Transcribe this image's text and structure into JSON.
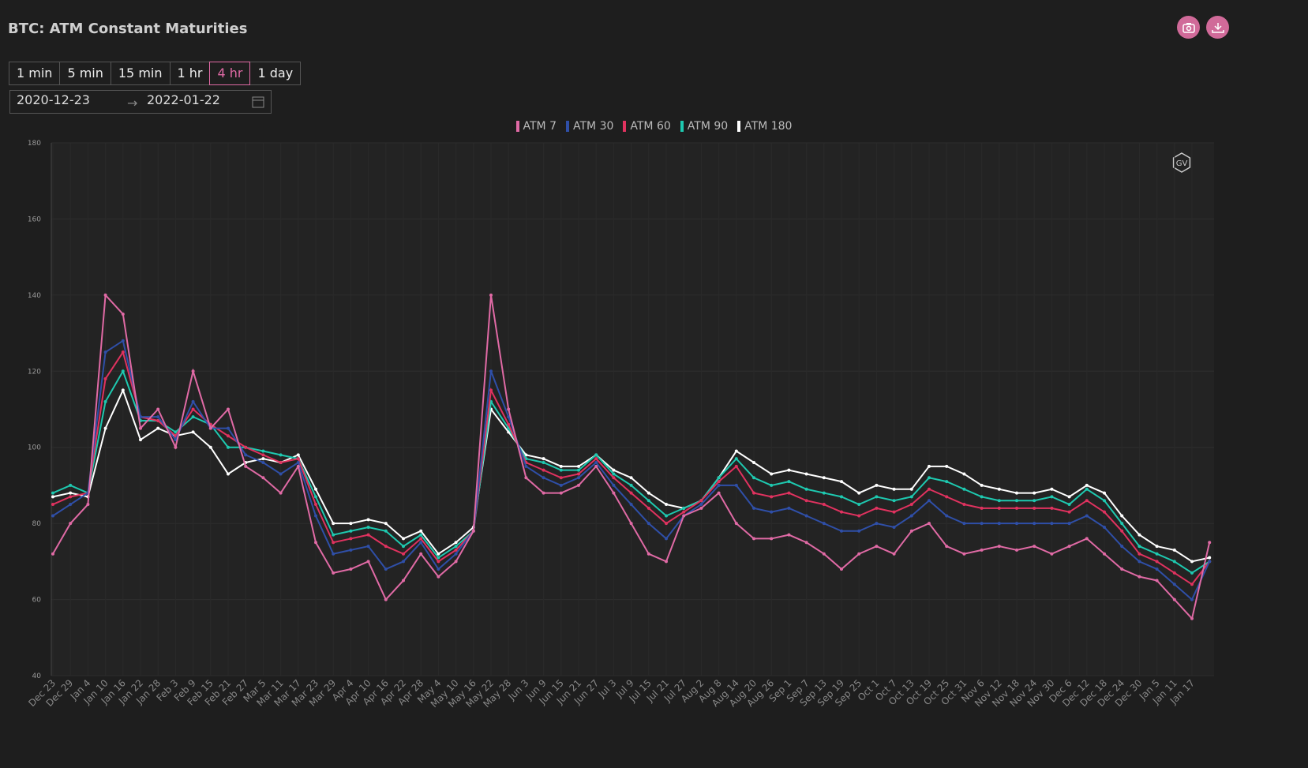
{
  "header": {
    "title": "BTC: ATM Constant Maturities",
    "intervals": [
      "1 min",
      "5 min",
      "15 min",
      "1 hr",
      "4 hr",
      "1 day"
    ],
    "active_interval": 4,
    "start_date": "2020-12-23",
    "end_date": "2022-01-22"
  },
  "chart_data": {
    "type": "line",
    "categories": [
      "Dec 23",
      "Dec 29",
      "Jan 4",
      "Jan 10",
      "Jan 16",
      "Jan 22",
      "Jan 28",
      "Feb 3",
      "Feb 9",
      "Feb 15",
      "Feb 21",
      "Feb 27",
      "Mar 5",
      "Mar 11",
      "Mar 17",
      "Mar 23",
      "Mar 29",
      "Apr 4",
      "Apr 10",
      "Apr 16",
      "Apr 22",
      "Apr 28",
      "May 4",
      "May 10",
      "May 16",
      "May 22",
      "May 28",
      "Jun 3",
      "Jun 9",
      "Jun 15",
      "Jun 21",
      "Jun 27",
      "Jul 3",
      "Jul 9",
      "Jul 15",
      "Jul 21",
      "Jul 27",
      "Aug 2",
      "Aug 8",
      "Aug 14",
      "Aug 20",
      "Aug 26",
      "Sep 1",
      "Sep 7",
      "Sep 13",
      "Sep 19",
      "Sep 25",
      "Oct 1",
      "Oct 7",
      "Oct 13",
      "Oct 19",
      "Oct 25",
      "Oct 31",
      "Nov 6",
      "Nov 12",
      "Nov 18",
      "Nov 24",
      "Nov 30",
      "Dec 6",
      "Dec 12",
      "Dec 18",
      "Dec 24",
      "Dec 30",
      "Jan 5",
      "Jan 11",
      "Jan 17",
      null
    ],
    "series": [
      {
        "name": "ATM 7",
        "color": "#e06aa5",
        "values": [
          72,
          80,
          85,
          140,
          135,
          105,
          110,
          100,
          120,
          105,
          110,
          95,
          92,
          88,
          95,
          75,
          67,
          68,
          70,
          60,
          65,
          72,
          66,
          70,
          78,
          140,
          110,
          92,
          88,
          88,
          90,
          95,
          88,
          80,
          72,
          70,
          82,
          84,
          88,
          80,
          76,
          76,
          77,
          75,
          72,
          68,
          72,
          74,
          72,
          78,
          80,
          74,
          72,
          73,
          74,
          73,
          74,
          72,
          74,
          76,
          72,
          68,
          66,
          65,
          60,
          55,
          75
        ]
      },
      {
        "name": "ATM 30",
        "color": "#2f4fa8",
        "values": [
          82,
          85,
          88,
          125,
          128,
          108,
          108,
          102,
          112,
          105,
          105,
          98,
          96,
          93,
          96,
          82,
          72,
          73,
          74,
          68,
          70,
          75,
          68,
          72,
          78,
          120,
          108,
          95,
          92,
          90,
          92,
          96,
          90,
          85,
          80,
          76,
          82,
          85,
          90,
          90,
          84,
          83,
          84,
          82,
          80,
          78,
          78,
          80,
          79,
          82,
          86,
          82,
          80,
          80,
          80,
          80,
          80,
          80,
          80,
          82,
          79,
          74,
          70,
          68,
          64,
          60,
          70
        ]
      },
      {
        "name": "ATM 60",
        "color": "#e0325f",
        "values": [
          85,
          87,
          88,
          118,
          125,
          108,
          107,
          103,
          110,
          106,
          103,
          100,
          98,
          96,
          97,
          85,
          75,
          76,
          77,
          74,
          72,
          76,
          70,
          73,
          78,
          115,
          106,
          96,
          94,
          92,
          93,
          97,
          92,
          88,
          84,
          80,
          83,
          86,
          91,
          95,
          88,
          87,
          88,
          86,
          85,
          83,
          82,
          84,
          83,
          85,
          89,
          87,
          85,
          84,
          84,
          84,
          84,
          84,
          83,
          86,
          83,
          78,
          72,
          70,
          67,
          64,
          70
        ]
      },
      {
        "name": "ATM 90",
        "color": "#1ec9b0",
        "values": [
          88,
          90,
          88,
          112,
          120,
          107,
          107,
          104,
          108,
          106,
          100,
          100,
          99,
          98,
          97,
          87,
          77,
          78,
          79,
          78,
          74,
          77,
          71,
          74,
          78,
          112,
          105,
          97,
          96,
          94,
          94,
          98,
          93,
          90,
          86,
          82,
          84,
          86,
          92,
          97,
          92,
          90,
          91,
          89,
          88,
          87,
          85,
          87,
          86,
          87,
          92,
          91,
          89,
          87,
          86,
          86,
          86,
          87,
          85,
          89,
          86,
          80,
          74,
          72,
          70,
          67,
          70
        ]
      },
      {
        "name": "ATM 180",
        "color": "#ffffff",
        "values": [
          87,
          88,
          87,
          105,
          115,
          102,
          105,
          103,
          104,
          100,
          93,
          96,
          97,
          96,
          98,
          89,
          80,
          80,
          81,
          80,
          76,
          78,
          72,
          75,
          79,
          110,
          104,
          98,
          97,
          95,
          95,
          98,
          94,
          92,
          88,
          85,
          84,
          86,
          92,
          99,
          96,
          93,
          94,
          93,
          92,
          91,
          88,
          90,
          89,
          89,
          95,
          95,
          93,
          90,
          89,
          88,
          88,
          89,
          87,
          90,
          88,
          82,
          77,
          74,
          73,
          70,
          71
        ]
      }
    ],
    "ylim": [
      40,
      180
    ],
    "yticks": [
      40,
      60,
      80,
      100,
      120,
      140,
      160,
      180
    ],
    "grid": true
  }
}
